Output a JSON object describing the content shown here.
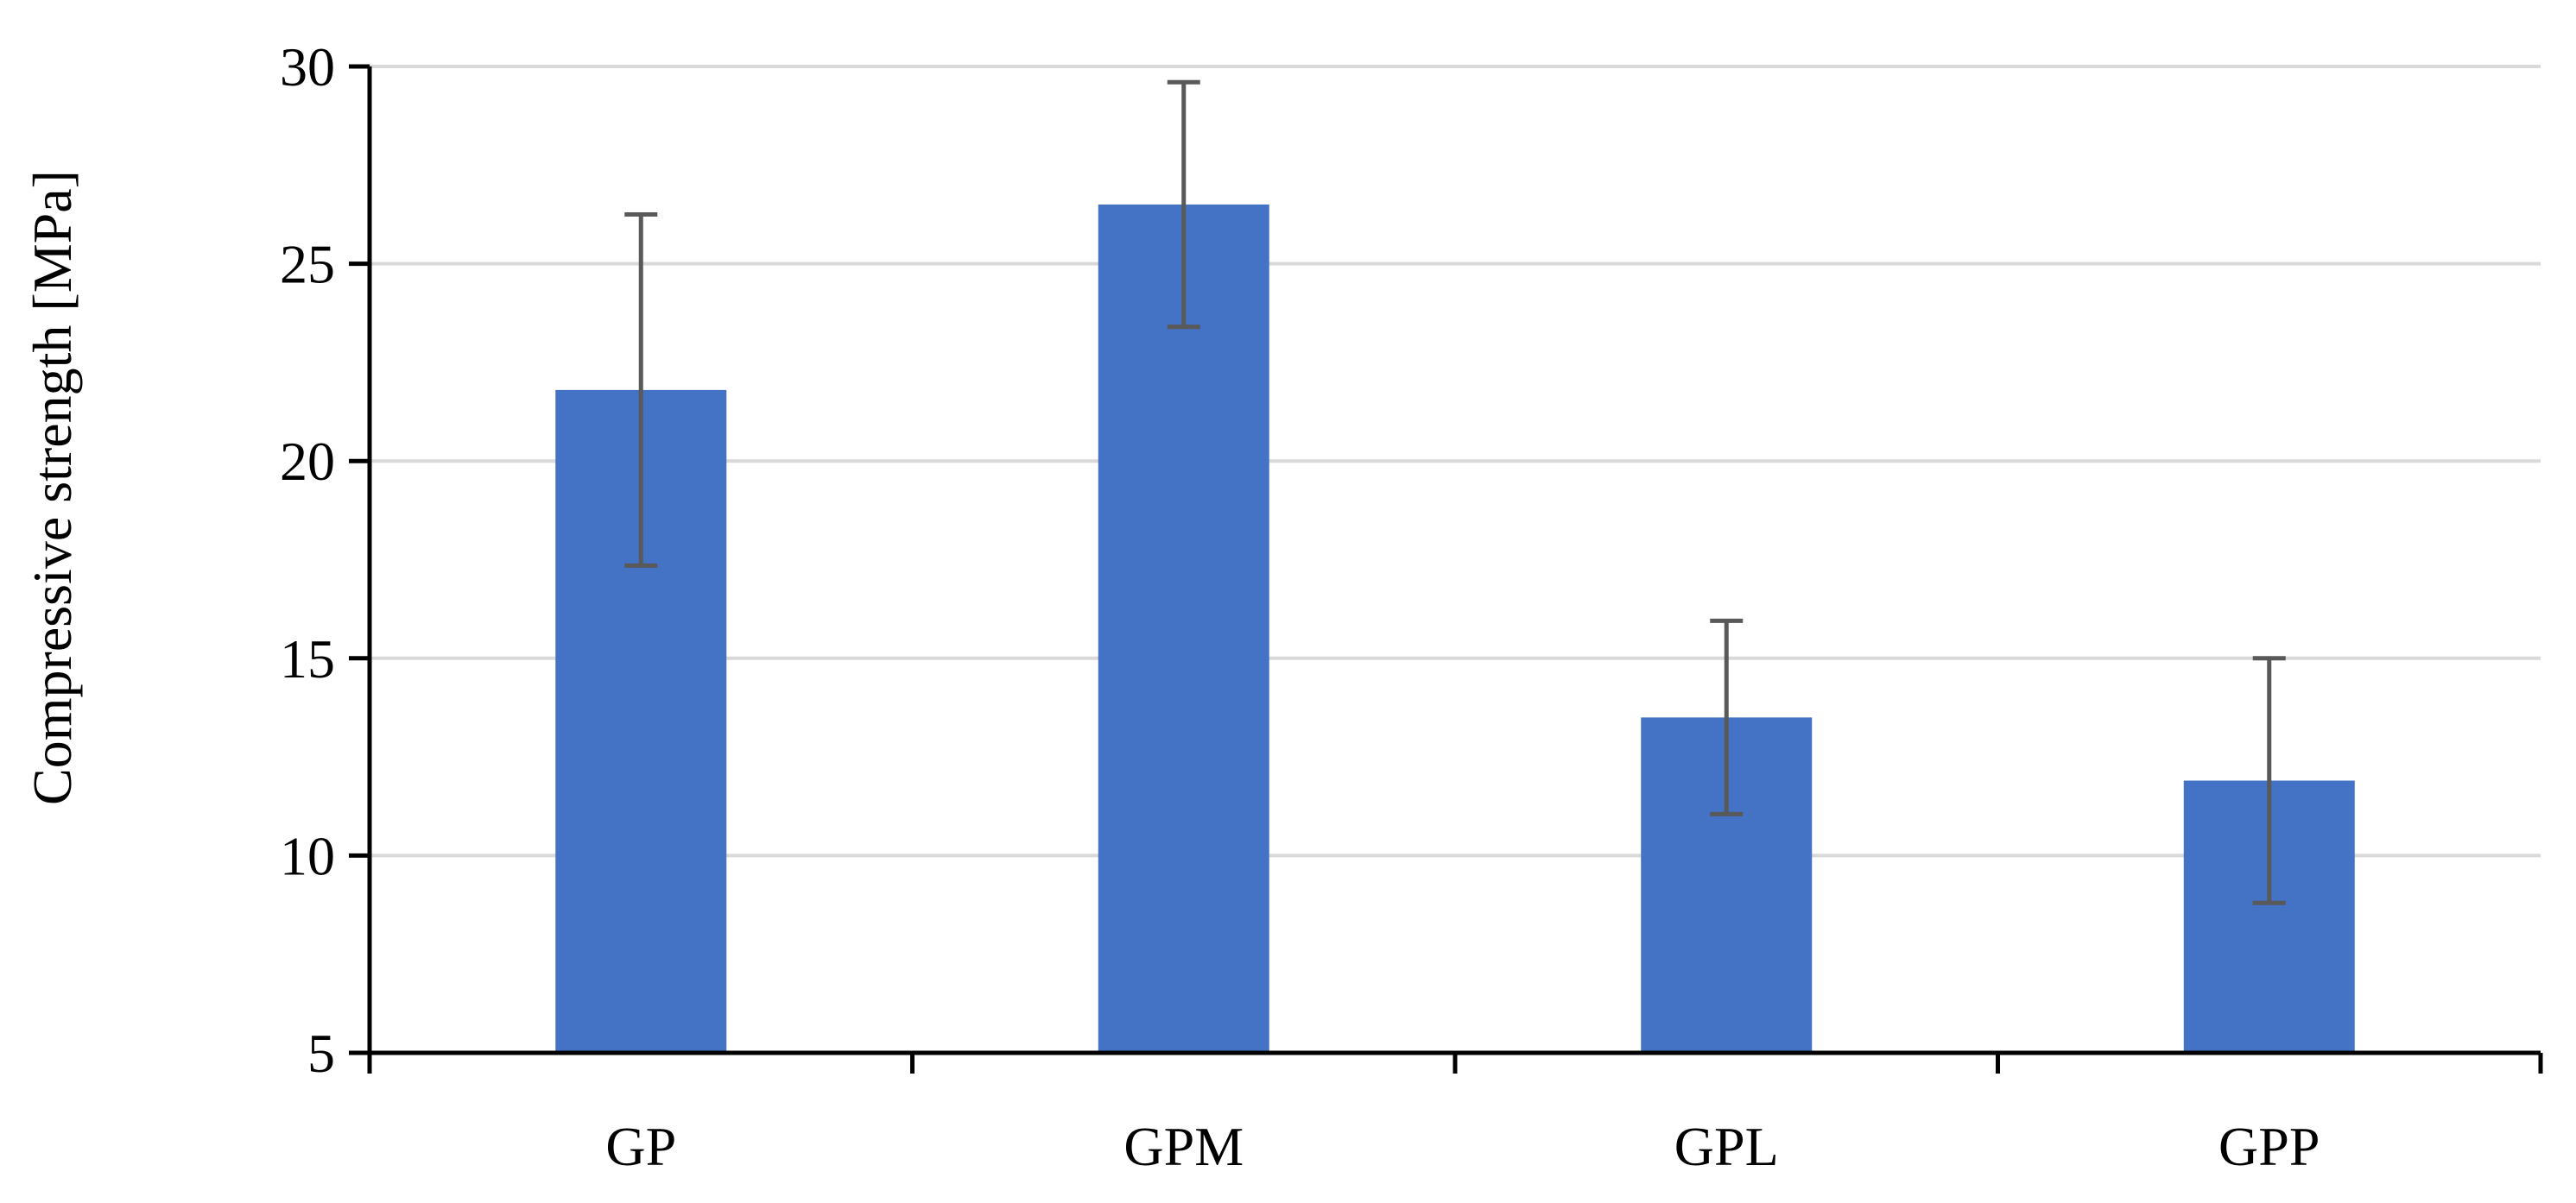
{
  "chart_data": {
    "type": "bar",
    "title": "",
    "xlabel": "",
    "ylabel": "Compressive strength [MPa]",
    "categories": [
      "GP",
      "GPM",
      "GPL",
      "GPP"
    ],
    "series": [
      {
        "values": [
          21.8,
          26.5,
          13.5,
          11.9
        ],
        "error": [
          4.45,
          3.1,
          2.45,
          3.1
        ],
        "color": "#4472C4"
      }
    ],
    "ylim": [
      5,
      30
    ],
    "yticks": [
      "5",
      "10",
      "15",
      "20",
      "25",
      "30"
    ],
    "grid": true,
    "legend": "none",
    "error_bar_color": "#595959",
    "grid_color": "#D9D9D9",
    "axis_color": "#000000"
  }
}
